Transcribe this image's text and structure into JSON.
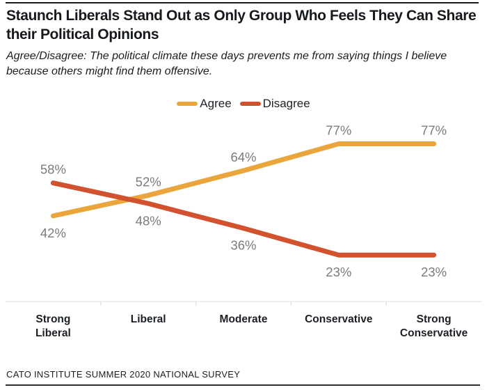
{
  "header": {
    "title": "Staunch Liberals Stand Out as Only Group Who Feels They Can Share their Political Opinions",
    "subtitle": "Agree/Disagree: The political climate these days prevents me from saying things I believe because others might find them offensive."
  },
  "footer": {
    "source": "CATO INSTITUTE SUMMER 2020 NATIONAL SURVEY"
  },
  "colors": {
    "agree": "#EAA63C",
    "disagree": "#D2512E",
    "data_label_gray": "#7B7B7B",
    "axis_gray": "#E8E8E8",
    "ink": "#16191D"
  },
  "chart_data": {
    "type": "line",
    "categories": [
      "Strong Liberal",
      "Liberal",
      "Moderate",
      "Conservative",
      "Strong Conservative"
    ],
    "series": [
      {
        "name": "Agree",
        "color": "#EAA63C",
        "values": [
          42,
          52,
          64,
          77,
          77
        ]
      },
      {
        "name": "Disagree",
        "color": "#D2512E",
        "values": [
          58,
          48,
          36,
          23,
          23
        ]
      }
    ],
    "value_suffix": "%",
    "ylim": [
      0,
      100
    ],
    "grid": false,
    "data_labels": true,
    "legend_position": "top-center",
    "title": "Staunch Liberals Stand Out as Only Group Who Feels They Can Share their Political Opinions",
    "xlabel": "",
    "ylabel": ""
  }
}
